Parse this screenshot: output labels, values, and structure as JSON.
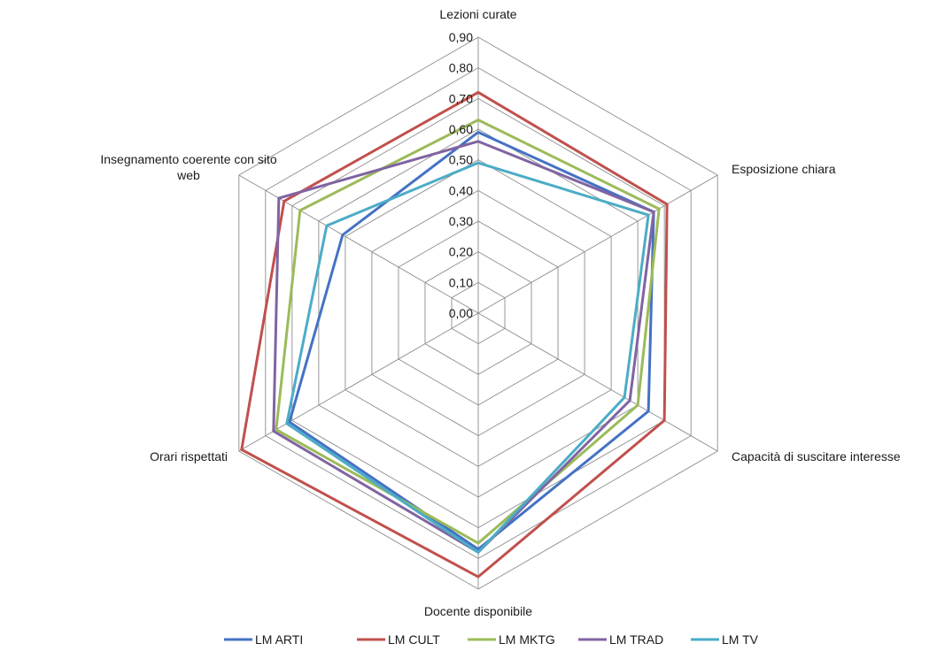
{
  "chart_data": {
    "type": "radar",
    "axes": [
      [
        "Lezioni curate"
      ],
      [
        "Esposizione chiara"
      ],
      [
        "Capacità di suscitare interesse"
      ],
      [
        "Docente disponibile"
      ],
      [
        "Orari rispettati"
      ],
      [
        "Insegnamento coerente con sito",
        "web"
      ]
    ],
    "ticks": [
      "0,00",
      "0,10",
      "0,20",
      "0,30",
      "0,40",
      "0,50",
      "0,60",
      "0,70",
      "0,80",
      "0,90"
    ],
    "rmax": 0.9,
    "series": [
      {
        "name": "LM ARTI",
        "color": "#4472C4",
        "values": [
          0.59,
          0.66,
          0.64,
          0.77,
          0.71,
          0.51
        ]
      },
      {
        "name": "LM CULT",
        "color": "#C0504D",
        "values": [
          0.72,
          0.71,
          0.7,
          0.86,
          0.89,
          0.73
        ]
      },
      {
        "name": "LM MKTG",
        "color": "#9BBB59",
        "values": [
          0.63,
          0.68,
          0.6,
          0.75,
          0.76,
          0.67
        ]
      },
      {
        "name": "LM TRAD",
        "color": "#8064A2",
        "values": [
          0.56,
          0.66,
          0.57,
          0.78,
          0.77,
          0.75
        ]
      },
      {
        "name": "LM TV",
        "color": "#4BACC6",
        "values": [
          0.49,
          0.64,
          0.55,
          0.78,
          0.72,
          0.57
        ]
      }
    ]
  }
}
